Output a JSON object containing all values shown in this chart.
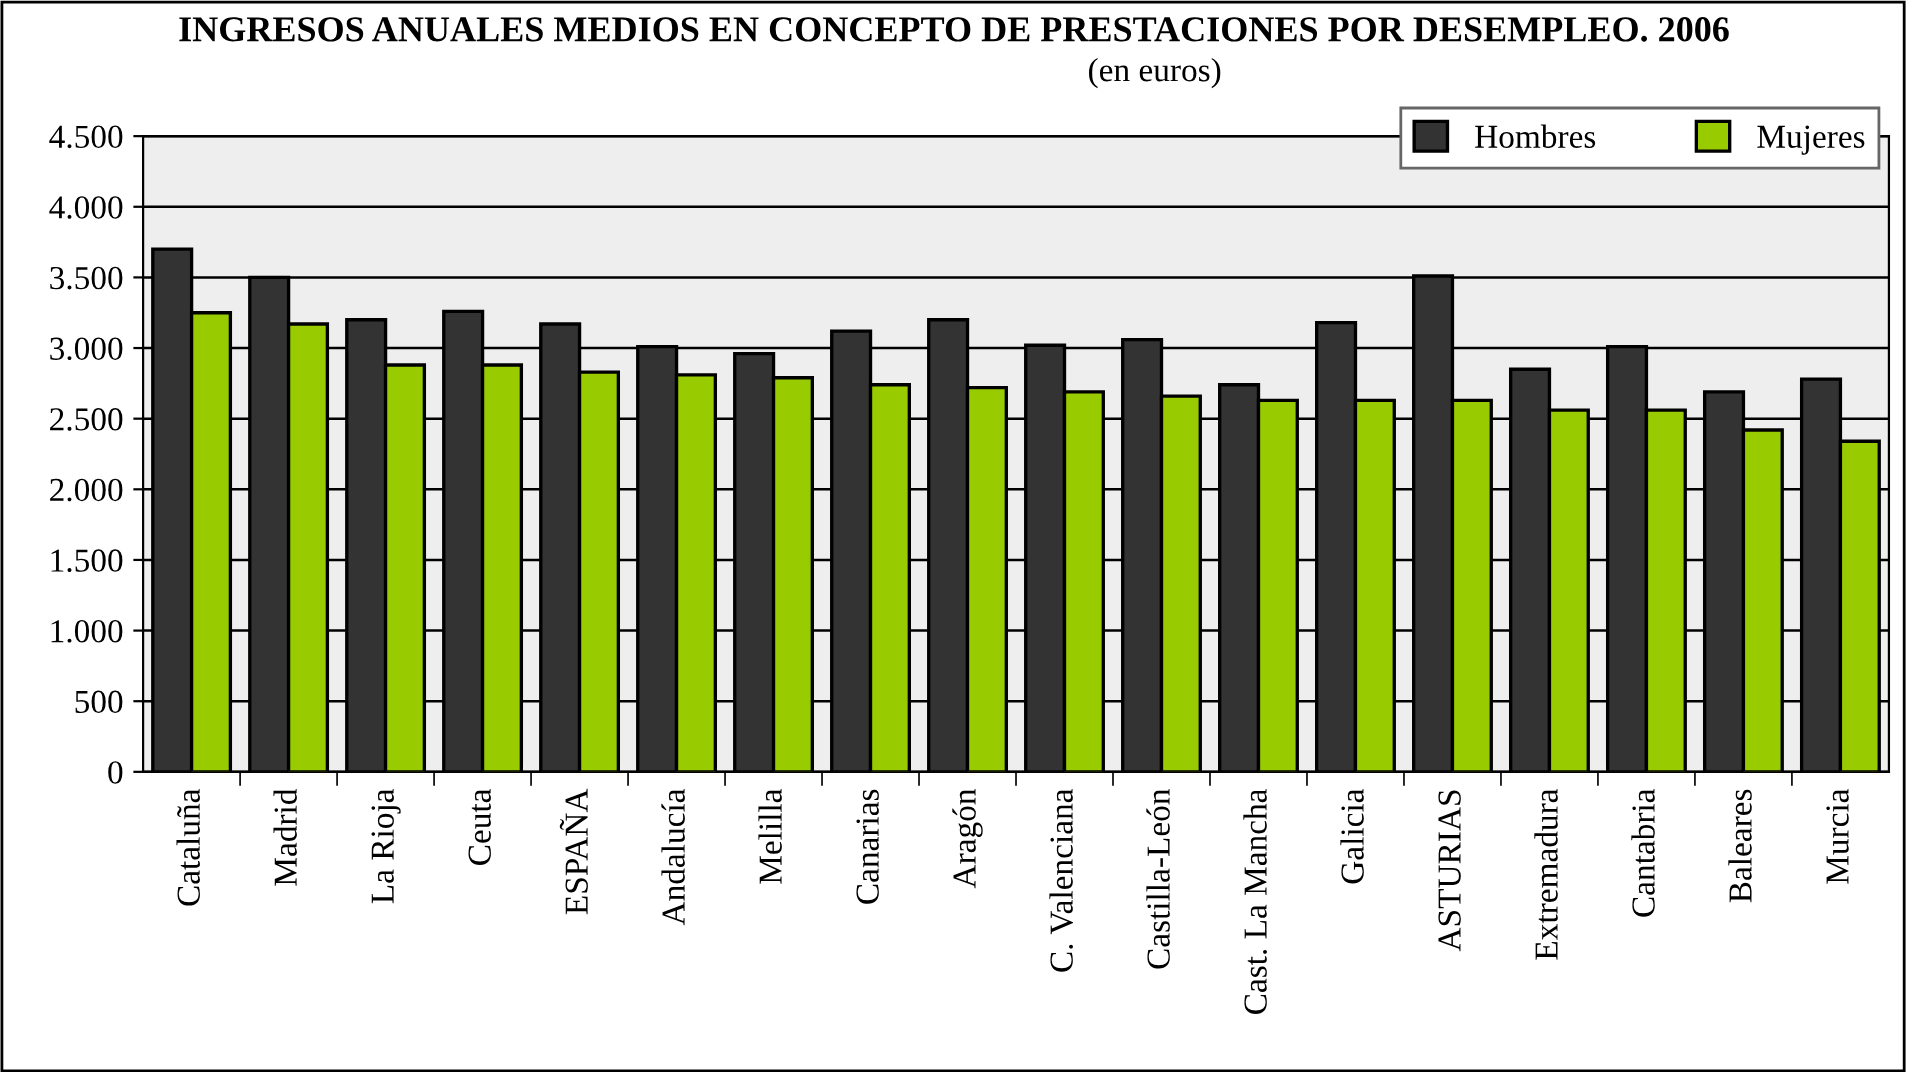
{
  "chart_data": {
    "type": "bar",
    "title": "INGRESOS ANUALES MEDIOS EN CONCEPTO DE PRESTACIONES POR DESEMPLEO. 2006",
    "subtitle": "(en euros)",
    "categories": [
      "Cataluña",
      "Madrid",
      "La Rioja",
      "Ceuta",
      "ESPAÑA",
      "Andalucía",
      "Melilla",
      "Canarias",
      "Aragón",
      "C. Valenciana",
      "Castilla-León",
      "Cast. La Mancha",
      "Galicia",
      "ASTURIAS",
      "Extremadura",
      "Cantabria",
      "Baleares",
      "Murcia"
    ],
    "series": [
      {
        "name": "Hombres",
        "color": "#333333",
        "values": [
          3700,
          3500,
          3200,
          3260,
          3170,
          3010,
          2960,
          3120,
          3200,
          3020,
          3060,
          2740,
          3180,
          3510,
          2850,
          3010,
          2690,
          2780
        ]
      },
      {
        "name": "Mujeres",
        "color": "#99cc00",
        "values": [
          3250,
          3170,
          2880,
          2880,
          2830,
          2810,
          2790,
          2740,
          2720,
          2690,
          2660,
          2630,
          2630,
          2630,
          2560,
          2560,
          2420,
          2340
        ]
      }
    ],
    "ylim": [
      0,
      4500
    ],
    "yticks": [
      0,
      500,
      {
        "value": 1000,
        "label": "1.000"
      },
      {
        "value": 1500,
        "label": "1.500"
      },
      {
        "value": 2000,
        "label": "2.000"
      },
      {
        "value": 2500,
        "label": "2.500"
      },
      {
        "value": 3000,
        "label": "3.000"
      },
      {
        "value": 3500,
        "label": "3.500"
      },
      {
        "value": 4000,
        "label": "4.000"
      },
      {
        "value": 4500,
        "label": "4.500"
      }
    ],
    "grid": "y",
    "legend": "top right"
  }
}
